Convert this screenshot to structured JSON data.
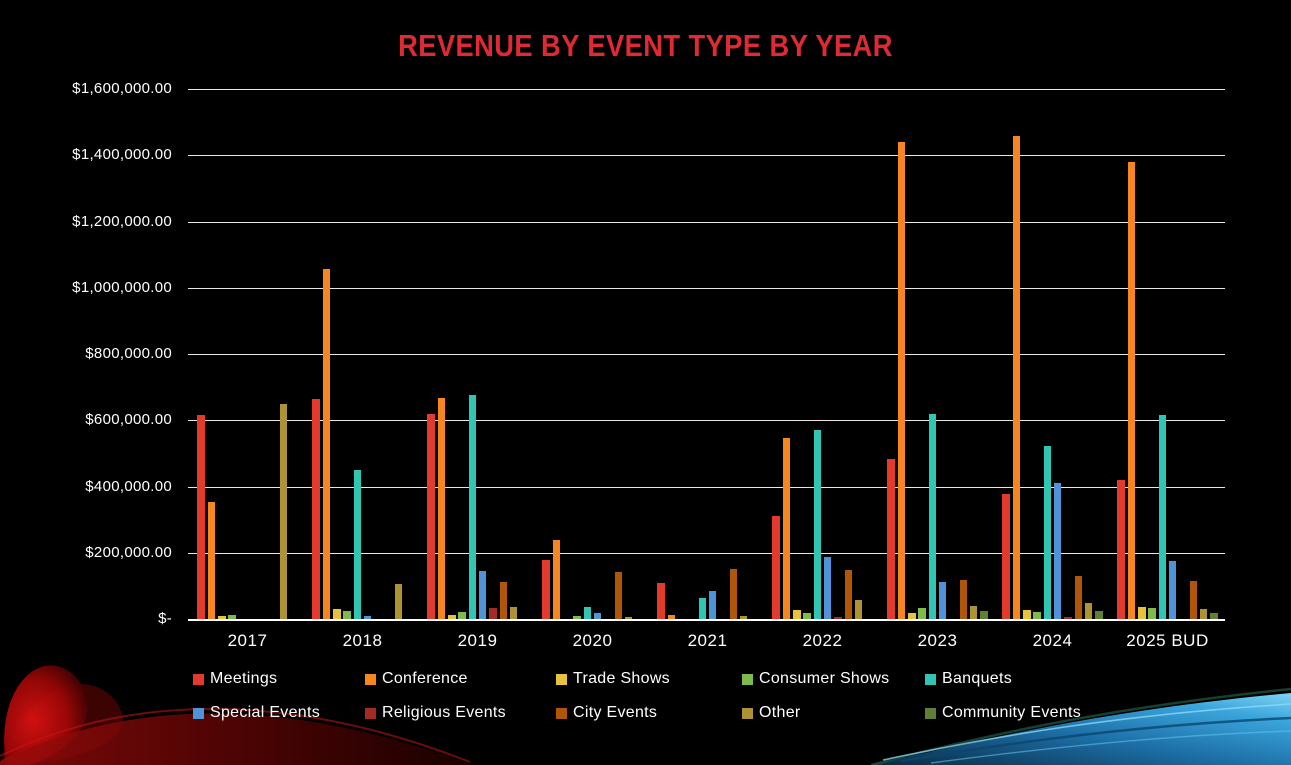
{
  "title": "REVENUE BY EVENT TYPE BY YEAR",
  "colors": {
    "background": "#000000",
    "title": "#E02A33",
    "grid": "#E8E8E8",
    "axis_text": "#FFFFFF"
  },
  "chart_data": {
    "type": "bar",
    "title": "REVENUE BY EVENT TYPE BY YEAR",
    "xlabel": "",
    "ylabel": "",
    "ylim": [
      0,
      1600000
    ],
    "grid": true,
    "legend_position": "bottom",
    "categories": [
      "2017",
      "2018",
      "2019",
      "2020",
      "2021",
      "2022",
      "2023",
      "2024",
      "2025 BUD"
    ],
    "ytick_values": [
      0,
      200000,
      400000,
      600000,
      800000,
      1000000,
      1200000,
      1400000,
      1600000
    ],
    "ytick_labels": [
      "$-",
      "$200,000.00",
      "$400,000.00",
      "$600,000.00",
      "$800,000.00",
      "$1,000,000.00",
      "$1,200,000.00",
      "$1,400,000.00",
      "$1,600,000.00"
    ],
    "series": [
      {
        "name": "Meetings",
        "color": "#E23B2E",
        "values": [
          615000,
          665000,
          620000,
          178000,
          110000,
          310000,
          483000,
          378000,
          420000
        ]
      },
      {
        "name": "Conference",
        "color": "#F6861F",
        "values": [
          353000,
          1058000,
          667000,
          237000,
          12000,
          545000,
          1440000,
          1459000,
          1380000
        ]
      },
      {
        "name": "Trade Shows",
        "color": "#E7C33D",
        "values": [
          10000,
          30000,
          13000,
          0,
          0,
          27000,
          17000,
          27000,
          37000
        ]
      },
      {
        "name": "Consumer Shows",
        "color": "#7FBA4C",
        "values": [
          13000,
          25000,
          20000,
          9000,
          0,
          17000,
          34000,
          20000,
          34000
        ]
      },
      {
        "name": "Banquets",
        "color": "#31C6B3",
        "values": [
          0,
          450000,
          675000,
          37000,
          63000,
          570000,
          620000,
          522000,
          615000
        ]
      },
      {
        "name": "Special Events",
        "color": "#4F94D8",
        "values": [
          0,
          8000,
          144000,
          17000,
          85000,
          186000,
          112000,
          410000,
          176000
        ]
      },
      {
        "name": "Religious Events",
        "color": "#A42A25",
        "values": [
          0,
          0,
          32000,
          0,
          0,
          7000,
          0,
          5000,
          0
        ]
      },
      {
        "name": "City Events",
        "color": "#B05608",
        "values": [
          0,
          0,
          113000,
          142000,
          150000,
          148000,
          118000,
          130000,
          116000
        ]
      },
      {
        "name": "Other",
        "color": "#AD9334",
        "values": [
          650000,
          105000,
          37000,
          5000,
          8000,
          56000,
          40000,
          47000,
          30000
        ]
      },
      {
        "name": "Community Events",
        "color": "#5F7F34",
        "values": [
          0,
          0,
          0,
          0,
          0,
          0,
          23000,
          24000,
          18000
        ]
      }
    ],
    "legend_rows": [
      [
        0,
        1,
        2,
        3,
        4
      ],
      [
        5,
        6,
        7,
        8,
        9
      ]
    ]
  }
}
